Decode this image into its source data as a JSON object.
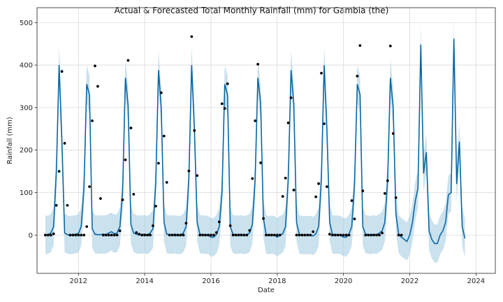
{
  "chart_data": {
    "type": "line",
    "title": "Actual & Forecasted Total Monthly Rainfall (mm) for Gambia (the)",
    "xlabel": "Date",
    "ylabel": "Rainfall (mm)",
    "xlim": [
      "2010-10-01",
      "2024-08-01"
    ],
    "ylim": [
      -90,
      535
    ],
    "x_ticks": [
      "2012",
      "2014",
      "2016",
      "2018",
      "2020",
      "2022",
      "2024"
    ],
    "y_ticks": [
      0,
      100,
      200,
      300,
      400,
      500
    ],
    "grid": true,
    "colors": {
      "forecast": "#0a67a3",
      "band": "#a6cde2",
      "actual": "#000000"
    },
    "forecast_start": "2011-01",
    "forecast": [
      0,
      1,
      5,
      20,
      150,
      400,
      220,
      5,
      1,
      0,
      1,
      2,
      4,
      20,
      110,
      355,
      330,
      15,
      2,
      1,
      1,
      2,
      1,
      5,
      8,
      3,
      5,
      20,
      100,
      370,
      305,
      25,
      5,
      2,
      1,
      1,
      2,
      0,
      5,
      15,
      120,
      388,
      300,
      30,
      2,
      1,
      1,
      2,
      0,
      0,
      5,
      20,
      130,
      400,
      250,
      30,
      2,
      1,
      1,
      0,
      -5,
      -5,
      2,
      20,
      100,
      355,
      330,
      20,
      2,
      1,
      1,
      2,
      0,
      1,
      5,
      25,
      130,
      370,
      310,
      40,
      1,
      0,
      1,
      0,
      -5,
      0,
      3,
      20,
      130,
      388,
      310,
      30,
      2,
      0,
      0,
      0,
      0,
      -2,
      3,
      20,
      130,
      400,
      250,
      30,
      2,
      1,
      1,
      0,
      -5,
      -5,
      3,
      20,
      120,
      355,
      330,
      20,
      2,
      1,
      0,
      2,
      0,
      5,
      10,
      30,
      130,
      370,
      300,
      50,
      2,
      -5,
      -10,
      -15,
      0,
      30,
      80,
      110,
      448,
      145,
      195,
      10,
      -10,
      -20,
      -20,
      0,
      10,
      30,
      95,
      100,
      462,
      120,
      220,
      20,
      -8
    ],
    "actual": [
      {
        "x": "2011-01",
        "y": 0
      },
      {
        "x": "2011-02",
        "y": 0
      },
      {
        "x": "2011-03",
        "y": 0
      },
      {
        "x": "2011-04",
        "y": 3
      },
      {
        "x": "2011-05",
        "y": 70
      },
      {
        "x": "2011-06",
        "y": 150
      },
      {
        "x": "2011-07",
        "y": 385
      },
      {
        "x": "2011-08",
        "y": 216
      },
      {
        "x": "2011-09",
        "y": 70
      },
      {
        "x": "2011-10",
        "y": 0
      },
      {
        "x": "2011-11",
        "y": 0
      },
      {
        "x": "2011-12",
        "y": 0
      },
      {
        "x": "2012-01",
        "y": 0
      },
      {
        "x": "2012-02",
        "y": 0
      },
      {
        "x": "2012-03",
        "y": 0
      },
      {
        "x": "2012-04",
        "y": 20
      },
      {
        "x": "2012-05",
        "y": 114
      },
      {
        "x": "2012-06",
        "y": 269
      },
      {
        "x": "2012-07",
        "y": 398
      },
      {
        "x": "2012-08",
        "y": 350
      },
      {
        "x": "2012-09",
        "y": 86
      },
      {
        "x": "2012-10",
        "y": 0
      },
      {
        "x": "2012-11",
        "y": 0
      },
      {
        "x": "2012-12",
        "y": 0
      },
      {
        "x": "2013-01",
        "y": 0
      },
      {
        "x": "2013-02",
        "y": 0
      },
      {
        "x": "2013-03",
        "y": 0
      },
      {
        "x": "2013-04",
        "y": 10
      },
      {
        "x": "2013-05",
        "y": 83
      },
      {
        "x": "2013-06",
        "y": 177
      },
      {
        "x": "2013-07",
        "y": 411
      },
      {
        "x": "2013-08",
        "y": 252
      },
      {
        "x": "2013-09",
        "y": 96
      },
      {
        "x": "2013-10",
        "y": 6
      },
      {
        "x": "2013-11",
        "y": 2
      },
      {
        "x": "2013-12",
        "y": 0
      },
      {
        "x": "2014-01",
        "y": 0
      },
      {
        "x": "2014-02",
        "y": 0
      },
      {
        "x": "2014-03",
        "y": 0
      },
      {
        "x": "2014-04",
        "y": 22
      },
      {
        "x": "2014-05",
        "y": 68
      },
      {
        "x": "2014-06",
        "y": 169
      },
      {
        "x": "2014-07",
        "y": 335
      },
      {
        "x": "2014-08",
        "y": 233
      },
      {
        "x": "2014-09",
        "y": 124
      },
      {
        "x": "2014-10",
        "y": 0
      },
      {
        "x": "2014-11",
        "y": 0
      },
      {
        "x": "2014-12",
        "y": 0
      },
      {
        "x": "2015-01",
        "y": 0
      },
      {
        "x": "2015-02",
        "y": 0
      },
      {
        "x": "2015-03",
        "y": 0
      },
      {
        "x": "2015-04",
        "y": 28
      },
      {
        "x": "2015-05",
        "y": 151
      },
      {
        "x": "2015-06",
        "y": 467
      },
      {
        "x": "2015-07",
        "y": 246
      },
      {
        "x": "2015-08",
        "y": 140
      },
      {
        "x": "2015-09",
        "y": 0
      },
      {
        "x": "2015-10",
        "y": 0
      },
      {
        "x": "2015-11",
        "y": 0
      },
      {
        "x": "2015-12",
        "y": 0
      },
      {
        "x": "2016-01",
        "y": 0
      },
      {
        "x": "2016-02",
        "y": 0
      },
      {
        "x": "2016-03",
        "y": 6
      },
      {
        "x": "2016-04",
        "y": 31
      },
      {
        "x": "2016-05",
        "y": 309
      },
      {
        "x": "2016-06",
        "y": 298
      },
      {
        "x": "2016-07",
        "y": 356
      },
      {
        "x": "2016-08",
        "y": 22
      },
      {
        "x": "2016-09",
        "y": 0
      },
      {
        "x": "2016-10",
        "y": 0
      },
      {
        "x": "2016-11",
        "y": 0
      },
      {
        "x": "2016-12",
        "y": 0
      },
      {
        "x": "2017-01",
        "y": 0
      },
      {
        "x": "2017-02",
        "y": 0
      },
      {
        "x": "2017-03",
        "y": 11
      },
      {
        "x": "2017-04",
        "y": 133
      },
      {
        "x": "2017-05",
        "y": 269
      },
      {
        "x": "2017-06",
        "y": 402
      },
      {
        "x": "2017-07",
        "y": 170
      },
      {
        "x": "2017-08",
        "y": 39
      },
      {
        "x": "2017-09",
        "y": 0
      },
      {
        "x": "2017-10",
        "y": 0
      },
      {
        "x": "2017-11",
        "y": 0
      },
      {
        "x": "2017-12",
        "y": 0
      },
      {
        "x": "2018-01",
        "y": 0
      },
      {
        "x": "2018-02",
        "y": 0
      },
      {
        "x": "2018-03",
        "y": 91
      },
      {
        "x": "2018-04",
        "y": 134
      },
      {
        "x": "2018-05",
        "y": 264
      },
      {
        "x": "2018-06",
        "y": 323
      },
      {
        "x": "2018-07",
        "y": 106
      },
      {
        "x": "2018-08",
        "y": 0
      },
      {
        "x": "2018-09",
        "y": 0
      },
      {
        "x": "2018-10",
        "y": 0
      },
      {
        "x": "2018-11",
        "y": 0
      },
      {
        "x": "2018-12",
        "y": 0
      },
      {
        "x": "2019-01",
        "y": 0
      },
      {
        "x": "2019-02",
        "y": 8
      },
      {
        "x": "2019-03",
        "y": 90
      },
      {
        "x": "2019-04",
        "y": 121
      },
      {
        "x": "2019-05",
        "y": 381
      },
      {
        "x": "2019-06",
        "y": 262
      },
      {
        "x": "2019-07",
        "y": 114
      },
      {
        "x": "2019-08",
        "y": 2
      },
      {
        "x": "2019-09",
        "y": 0
      },
      {
        "x": "2019-10",
        "y": 0
      },
      {
        "x": "2019-11",
        "y": 0
      },
      {
        "x": "2019-12",
        "y": 0
      },
      {
        "x": "2020-01",
        "y": 0
      },
      {
        "x": "2020-02",
        "y": 0
      },
      {
        "x": "2020-03",
        "y": 0
      },
      {
        "x": "2020-04",
        "y": 81
      },
      {
        "x": "2020-05",
        "y": 38
      },
      {
        "x": "2020-06",
        "y": 374
      },
      {
        "x": "2020-07",
        "y": 446
      },
      {
        "x": "2020-08",
        "y": 104
      },
      {
        "x": "2020-09",
        "y": 0
      },
      {
        "x": "2020-10",
        "y": 0
      },
      {
        "x": "2020-11",
        "y": 0
      },
      {
        "x": "2020-12",
        "y": 0
      },
      {
        "x": "2021-01",
        "y": 0
      },
      {
        "x": "2021-02",
        "y": 0
      },
      {
        "x": "2021-03",
        "y": 5
      },
      {
        "x": "2021-04",
        "y": 98
      },
      {
        "x": "2021-05",
        "y": 128
      },
      {
        "x": "2021-06",
        "y": 445
      },
      {
        "x": "2021-07",
        "y": 239
      },
      {
        "x": "2021-08",
        "y": 88
      },
      {
        "x": "2021-09",
        "y": 0
      },
      {
        "x": "2021-10",
        "y": 0
      }
    ],
    "band_width": 45
  }
}
